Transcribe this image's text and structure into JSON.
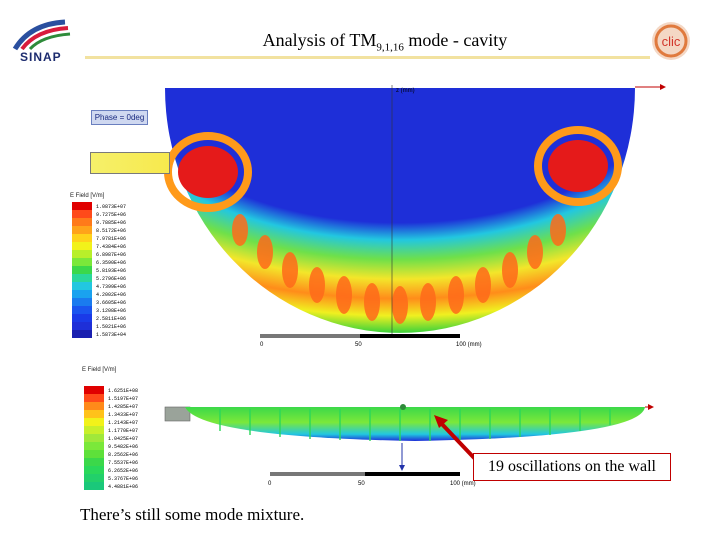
{
  "slide": {
    "title_main": "Analysis of TM",
    "title_sub": "9,1,16",
    "title_tail": " mode - cavity",
    "footer": "There’s still some mode mixture.",
    "callout": "19 oscillations on the wall"
  },
  "logos": {
    "left": "SINAP",
    "right": "clic"
  },
  "top_plot": {
    "phase_label": "Phase = 0deg",
    "legend_title": "E Field [V/m]",
    "legend_values": [
      "1.0873E+07",
      "9.7275E+06",
      "9.7885E+06",
      "8.5172E+06",
      "7.9781E+06",
      "7.4384E+06",
      "6.8987E+06",
      "6.3590E+06",
      "5.8193E+06",
      "5.2796E+06",
      "4.7399E+06",
      "4.2002E+06",
      "3.6605E+06",
      "3.1208E+06",
      "2.5811E+06",
      "1.5021E+06",
      "1.5873E+04"
    ],
    "scale_labels": [
      "0",
      "50",
      "100 (mm)"
    ],
    "axis_label": "z (mm)"
  },
  "bottom_plot": {
    "legend_title": "E Field [V/m]",
    "legend_values": [
      "1.6251E+08",
      "1.5197E+07",
      "1.4285E+07",
      "1.3433E+07",
      "1.2143E+07",
      "1.1770E+07",
      "1.0425E+07",
      "9.5482E+06",
      "8.2562E+06",
      "7.5537E+06",
      "6.2652E+06",
      "5.3767E+06",
      "4.4881E+06"
    ],
    "scale_labels": [
      "0",
      "50",
      "100 (mm)"
    ]
  },
  "colors": {
    "title_line": "#f2e2a0",
    "callout_border": "#c00000",
    "arrow": "#c00000",
    "field_low": "#1e2fd8",
    "field_high": "#e00000"
  }
}
